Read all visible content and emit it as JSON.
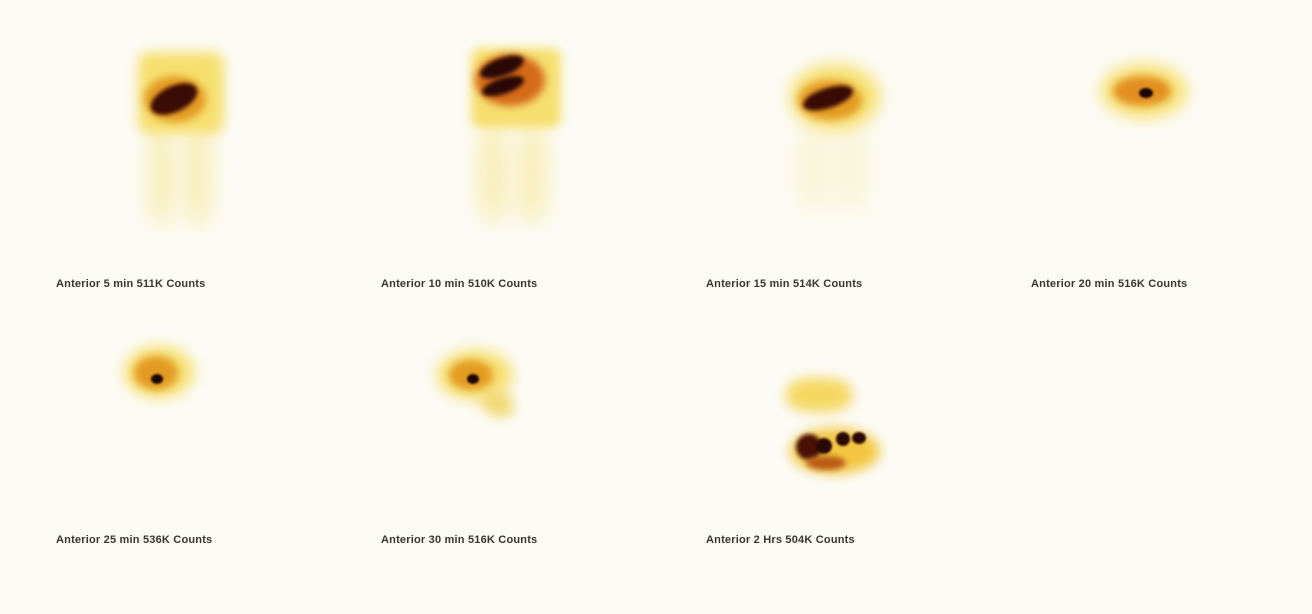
{
  "frames": [
    {
      "caption": "Anterior 5 min 511K Counts"
    },
    {
      "caption": "Anterior 10 min 510K Counts"
    },
    {
      "caption": "Anterior 15 min 514K Counts"
    },
    {
      "caption": "Anterior 20 min 516K Counts"
    },
    {
      "caption": "Anterior 25 min 536K Counts"
    },
    {
      "caption": "Anterior 30 min 516K Counts"
    },
    {
      "caption": "Anterior 2 Hrs 504K Counts"
    }
  ],
  "colors": {
    "background": "#fcfbf5",
    "hot_low": "#f7e27a",
    "hot_mid": "#e8a020",
    "hot_high": "#8a1a08",
    "hot_max": "#1a0604"
  }
}
